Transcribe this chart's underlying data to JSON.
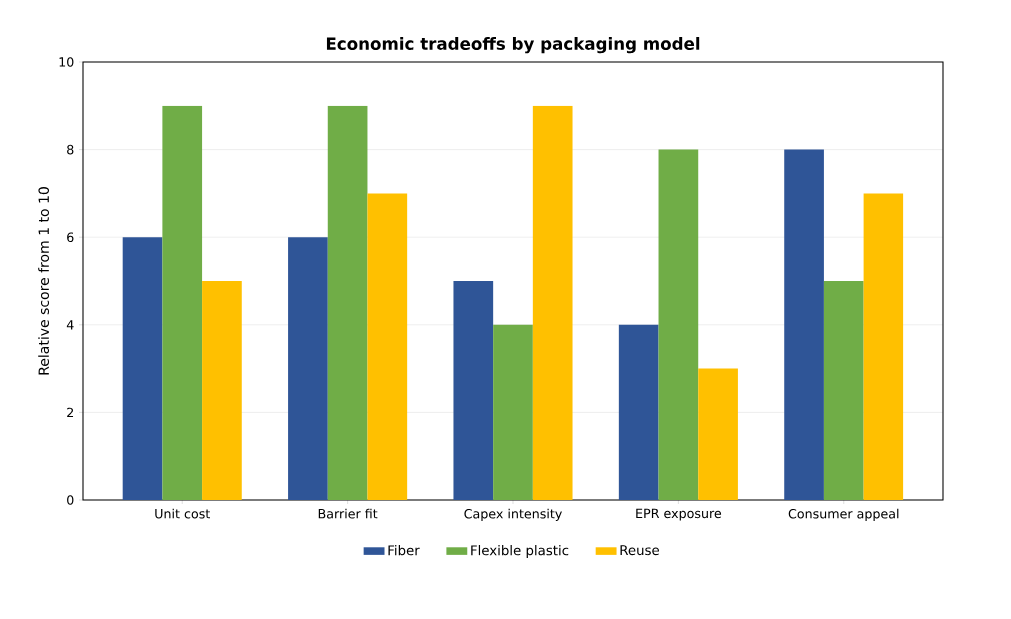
{
  "chart_data": {
    "type": "bar",
    "title": "Economic tradeoffs by packaging model",
    "ylabel": "Relative score from 1 to 10",
    "categories": [
      "Unit cost",
      "Barrier fit",
      "Capex intensity",
      "EPR exposure",
      "Consumer appeal"
    ],
    "series": [
      {
        "name": "Fiber",
        "color": "#2f5597",
        "values": [
          6,
          6,
          5,
          4,
          8
        ]
      },
      {
        "name": "Flexible plastic",
        "color": "#70ad47",
        "values": [
          9,
          9,
          4,
          8,
          5
        ]
      },
      {
        "name": "Reuse",
        "color": "#ffc000",
        "values": [
          5,
          7,
          9,
          3,
          7
        ]
      }
    ],
    "ylim": [
      0,
      10
    ],
    "yticks": [
      0,
      2,
      4,
      6,
      8,
      10
    ],
    "grid": "y",
    "legend": "bottom"
  }
}
